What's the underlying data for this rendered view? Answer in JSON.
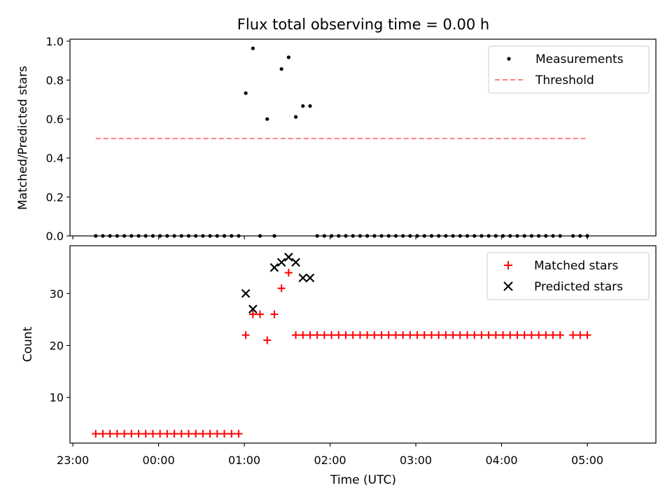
{
  "chart_data": {
    "title": "Flux total observing time = 0.00 h",
    "xlabel": "Time (UTC)",
    "xlim": [
      -62,
      348
    ],
    "x_tick_labels": [
      {
        "t": -60,
        "label": "23:00"
      },
      {
        "t": 0,
        "label": "00:00"
      },
      {
        "t": 60,
        "label": "01:00"
      },
      {
        "t": 120,
        "label": "02:00"
      },
      {
        "t": 180,
        "label": "03:00"
      },
      {
        "t": 240,
        "label": "04:00"
      },
      {
        "t": 300,
        "label": "05:00"
      }
    ],
    "x_units": "minutes after 00:00 UTC",
    "panels": [
      {
        "type": "scatter",
        "name": "ratio-panel",
        "ylabel": "Matched/Predicted stars",
        "ylim": [
          0,
          1.01
        ],
        "yticks": [
          0.0,
          0.2,
          0.4,
          0.6,
          0.8,
          1.0
        ],
        "y_tick_labels": [
          "0.0",
          "0.2",
          "0.4",
          "0.6",
          "0.8",
          "1.0"
        ],
        "series": [
          {
            "name": "Measurements",
            "marker": "dot",
            "color": "#000000",
            "x": [
              -44,
              -39,
              -34,
              -29,
              -24,
              -19,
              -14,
              -9,
              -4,
              1,
              6,
              11,
              16,
              21,
              26,
              31,
              36,
              41,
              46,
              51,
              56,
              61,
              66,
              71,
              76,
              81,
              86,
              91,
              96,
              101,
              106,
              111,
              116,
              121,
              126,
              131,
              136,
              141,
              146,
              151,
              156,
              161,
              166,
              171,
              176,
              181,
              186,
              191,
              196,
              201,
              206,
              211,
              216,
              221,
              226,
              231,
              236,
              241,
              246,
              251,
              256,
              261,
              266,
              271,
              276,
              281,
              290,
              295,
              300
            ],
            "y": [
              0,
              0,
              0,
              0,
              0,
              0,
              0,
              0,
              0,
              0,
              0,
              0,
              0,
              0,
              0,
              0,
              0,
              0,
              0,
              0,
              0,
              0.733,
              0.963,
              0,
              0.6,
              0,
              0.857,
              0.917,
              0.611,
              0.667,
              0.667,
              0,
              0,
              0,
              0,
              0,
              0,
              0,
              0,
              0,
              0,
              0,
              0,
              0,
              0,
              0,
              0,
              0,
              0,
              0,
              0,
              0,
              0,
              0,
              0,
              0,
              0,
              0,
              0,
              0,
              0,
              0,
              0,
              0,
              0,
              0,
              0,
              0,
              0
            ]
          },
          {
            "name": "Threshold",
            "type": "line",
            "style": "dashed",
            "color": "#ff8080",
            "x": [
              -44,
              300
            ],
            "y": [
              0.5,
              0.5
            ]
          }
        ],
        "legend": {
          "position": "top-right",
          "entries": [
            "Measurements",
            "Threshold"
          ]
        }
      },
      {
        "type": "scatter",
        "name": "count-panel",
        "ylabel": "Count",
        "ylim": [
          1.2,
          39.2
        ],
        "yticks": [
          10,
          20,
          30
        ],
        "y_tick_labels": [
          "10",
          "20",
          "30"
        ],
        "series": [
          {
            "name": "Matched stars",
            "marker": "plus",
            "color": "#ff0000",
            "x": [
              -44,
              -39,
              -34,
              -29,
              -24,
              -19,
              -14,
              -9,
              -4,
              1,
              6,
              11,
              16,
              21,
              26,
              31,
              36,
              41,
              46,
              51,
              56,
              61,
              66,
              71,
              76,
              81,
              86,
              91,
              96,
              101,
              106,
              111,
              116,
              121,
              126,
              131,
              136,
              141,
              146,
              151,
              156,
              161,
              166,
              171,
              176,
              181,
              186,
              191,
              196,
              201,
              206,
              211,
              216,
              221,
              226,
              231,
              236,
              241,
              246,
              251,
              256,
              261,
              266,
              271,
              276,
              281,
              290,
              295,
              300
            ],
            "y": [
              3,
              3,
              3,
              3,
              3,
              3,
              3,
              3,
              3,
              3,
              3,
              3,
              3,
              3,
              3,
              3,
              3,
              3,
              3,
              3,
              3,
              22,
              26,
              26,
              21,
              26,
              31,
              34,
              22,
              22,
              22,
              22,
              22,
              22,
              22,
              22,
              22,
              22,
              22,
              22,
              22,
              22,
              22,
              22,
              22,
              22,
              22,
              22,
              22,
              22,
              22,
              22,
              22,
              22,
              22,
              22,
              22,
              22,
              22,
              22,
              22,
              22,
              22,
              22,
              22,
              22,
              22,
              22,
              22
            ]
          },
          {
            "name": "Predicted stars",
            "marker": "x",
            "color": "#000000",
            "x": [
              61,
              66,
              81,
              86,
              91,
              96,
              101,
              106
            ],
            "y": [
              30,
              27,
              35,
              36,
              37,
              36,
              33,
              33
            ]
          }
        ],
        "legend": {
          "position": "top-right",
          "entries": [
            "Matched stars",
            "Predicted stars"
          ]
        }
      }
    ]
  }
}
